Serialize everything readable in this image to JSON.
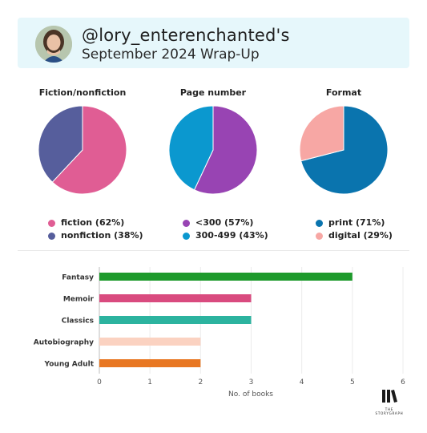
{
  "header": {
    "handle": "@lory_enterenchanted's",
    "subtitle": "September 2024 Wrap-Up"
  },
  "chart_data": [
    {
      "type": "pie",
      "title": "Fiction/nonfiction",
      "slices": [
        {
          "label": "fiction (62%)",
          "value": 62,
          "color": "#e05d94"
        },
        {
          "label": "nonfiction (38%)",
          "value": 38,
          "color": "#565e9c"
        }
      ]
    },
    {
      "type": "pie",
      "title": "Page number",
      "slices": [
        {
          "label": "<300 (57%)",
          "value": 57,
          "color": "#9844b3"
        },
        {
          "label": "300-499 (43%)",
          "value": 43,
          "color": "#0b98cf"
        }
      ]
    },
    {
      "type": "pie",
      "title": "Format",
      "slices": [
        {
          "label": "print (71%)",
          "value": 71,
          "color": "#0a74ae"
        },
        {
          "label": "digital (29%)",
          "value": 29,
          "color": "#f7a7a4"
        }
      ]
    },
    {
      "type": "bar",
      "orientation": "horizontal",
      "categories": [
        "Fantasy",
        "Memoir",
        "Classics",
        "Autobiography",
        "Young Adult"
      ],
      "values": [
        5,
        3,
        3,
        2,
        2
      ],
      "colors": [
        "#1e9a2c",
        "#d94b7f",
        "#2cb39f",
        "#fbd2c1",
        "#e87722"
      ],
      "xlabel": "No. of books",
      "xlim": [
        0,
        6
      ],
      "xticks": [
        "0",
        "1",
        "2",
        "3",
        "4",
        "5",
        "6"
      ],
      "grid": true
    }
  ],
  "logo": {
    "line1": "THE",
    "line2": "STORYGRAPH"
  },
  "icons": {
    "avatar": "profile-photo"
  }
}
